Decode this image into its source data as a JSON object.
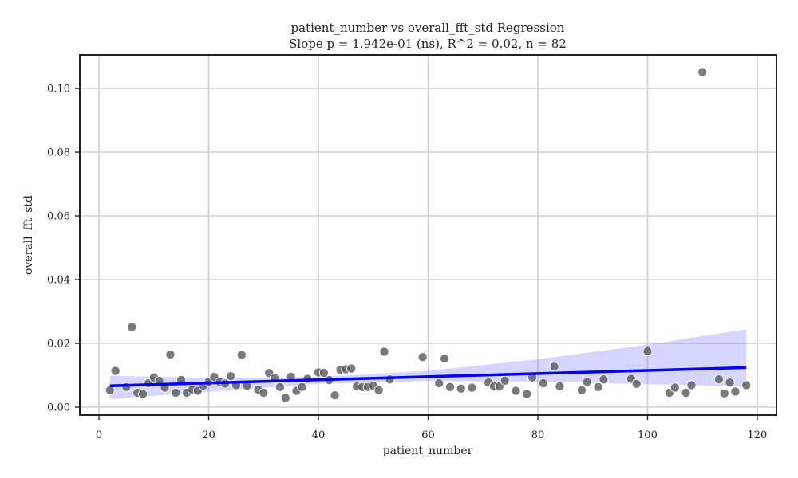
{
  "chart_data": {
    "type": "scatter",
    "title": "patient_number vs overall_fft_std Regression",
    "subtitle": "Slope p = 1.942e-01 (ns), R^2 = 0.02, n = 82",
    "xlabel": "patient_number",
    "ylabel": "overall_fft_std",
    "xlim": [
      -3.5,
      123.5
    ],
    "ylim": [
      -0.0025,
      0.1105
    ],
    "x_ticks": [
      0,
      20,
      40,
      60,
      80,
      100,
      120
    ],
    "y_ticks": [
      0.0,
      0.02,
      0.04,
      0.06,
      0.08,
      0.1
    ],
    "x_tick_labels": [
      "0",
      "20",
      "40",
      "60",
      "80",
      "100",
      "120"
    ],
    "y_tick_labels": [
      "0.00",
      "0.02",
      "0.04",
      "0.06",
      "0.08",
      "0.10"
    ],
    "grid": true,
    "legend": "none",
    "colors": {
      "points": "#555555",
      "regression_line": "#0000ff",
      "confidence_band": "#7b7bff"
    },
    "points": [
      [
        2,
        0.0053
      ],
      [
        3,
        0.0114
      ],
      [
        5,
        0.0063
      ],
      [
        6,
        0.0251
      ],
      [
        7,
        0.0045
      ],
      [
        8,
        0.0041
      ],
      [
        9,
        0.0075
      ],
      [
        10,
        0.0093
      ],
      [
        11,
        0.0082
      ],
      [
        12,
        0.0061
      ],
      [
        13,
        0.0165
      ],
      [
        14,
        0.0045
      ],
      [
        15,
        0.0085
      ],
      [
        16,
        0.0045
      ],
      [
        17,
        0.0055
      ],
      [
        18,
        0.0051
      ],
      [
        19,
        0.0067
      ],
      [
        20,
        0.0079
      ],
      [
        21,
        0.0095
      ],
      [
        22,
        0.0079
      ],
      [
        23,
        0.0074
      ],
      [
        24,
        0.0097
      ],
      [
        25,
        0.0069
      ],
      [
        26,
        0.0164
      ],
      [
        27,
        0.0067
      ],
      [
        29,
        0.0055
      ],
      [
        30,
        0.0045
      ],
      [
        31,
        0.0107
      ],
      [
        32,
        0.0091
      ],
      [
        33,
        0.0063
      ],
      [
        34,
        0.0029
      ],
      [
        35,
        0.0095
      ],
      [
        36,
        0.0051
      ],
      [
        37,
        0.0063
      ],
      [
        38,
        0.0089
      ],
      [
        40,
        0.0109
      ],
      [
        41,
        0.0107
      ],
      [
        42,
        0.0085
      ],
      [
        43,
        0.0037
      ],
      [
        44,
        0.0117
      ],
      [
        45,
        0.0119
      ],
      [
        46,
        0.0121
      ],
      [
        47,
        0.0065
      ],
      [
        48,
        0.0063
      ],
      [
        49,
        0.0063
      ],
      [
        50,
        0.0067
      ],
      [
        51,
        0.0053
      ],
      [
        52,
        0.0174
      ],
      [
        53,
        0.0087
      ],
      [
        59,
        0.0157
      ],
      [
        62,
        0.0075
      ],
      [
        63,
        0.0152
      ],
      [
        64,
        0.0063
      ],
      [
        66,
        0.0058
      ],
      [
        68,
        0.0061
      ],
      [
        71,
        0.0077
      ],
      [
        72,
        0.0065
      ],
      [
        73,
        0.0065
      ],
      [
        74,
        0.0083
      ],
      [
        76,
        0.0051
      ],
      [
        78,
        0.0041
      ],
      [
        79,
        0.0093
      ],
      [
        81,
        0.0075
      ],
      [
        83,
        0.0127
      ],
      [
        84,
        0.0065
      ],
      [
        88,
        0.0053
      ],
      [
        89,
        0.0079
      ],
      [
        91,
        0.0063
      ],
      [
        92,
        0.0087
      ],
      [
        97,
        0.0089
      ],
      [
        98,
        0.0073
      ],
      [
        100,
        0.0175
      ],
      [
        104,
        0.0045
      ],
      [
        105,
        0.0061
      ],
      [
        107,
        0.0045
      ],
      [
        108,
        0.0069
      ],
      [
        110,
        0.1051
      ],
      [
        113,
        0.0087
      ],
      [
        114,
        0.0043
      ],
      [
        115,
        0.0077
      ],
      [
        116,
        0.0049
      ],
      [
        118,
        0.0069
      ]
    ],
    "regression": {
      "x_range": [
        2,
        118
      ],
      "y_start": 0.0067,
      "y_end": 0.0124
    },
    "confidence_band": {
      "x": [
        2,
        20,
        40,
        60,
        80,
        100,
        118
      ],
      "upper": [
        0.0098,
        0.0092,
        0.0094,
        0.0114,
        0.015,
        0.0196,
        0.0244
      ],
      "lower": [
        0.0025,
        0.0048,
        0.0073,
        0.0082,
        0.008,
        0.0072,
        0.0065
      ]
    }
  }
}
